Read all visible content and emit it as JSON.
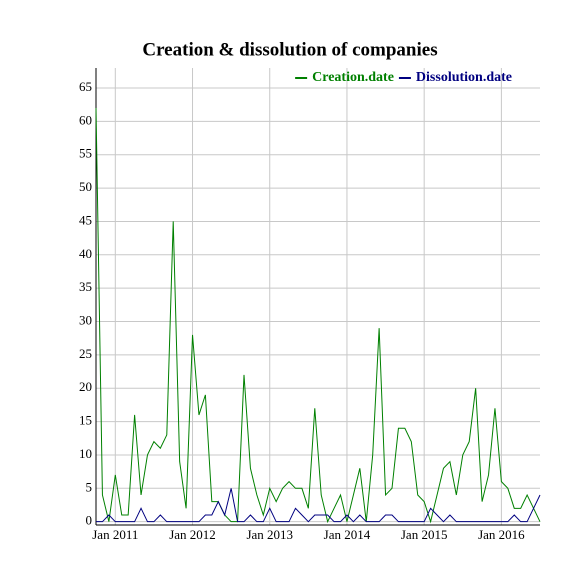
{
  "chart_data": {
    "type": "line",
    "title": "Creation & dissolution of companies",
    "x": [
      "2010-10",
      "2010-11",
      "2010-12",
      "2011-01",
      "2011-02",
      "2011-03",
      "2011-04",
      "2011-05",
      "2011-06",
      "2011-07",
      "2011-08",
      "2011-09",
      "2011-10",
      "2011-11",
      "2011-12",
      "2012-01",
      "2012-02",
      "2012-03",
      "2012-04",
      "2012-05",
      "2012-06",
      "2012-07",
      "2012-08",
      "2012-09",
      "2012-10",
      "2012-11",
      "2012-12",
      "2013-01",
      "2013-02",
      "2013-03",
      "2013-04",
      "2013-05",
      "2013-06",
      "2013-07",
      "2013-08",
      "2013-09",
      "2013-10",
      "2013-11",
      "2013-12",
      "2014-01",
      "2014-02",
      "2014-03",
      "2014-04",
      "2014-05",
      "2014-06",
      "2014-07",
      "2014-08",
      "2014-09",
      "2014-10",
      "2014-11",
      "2014-12",
      "2015-01",
      "2015-02",
      "2015-03",
      "2015-04",
      "2015-05",
      "2015-06",
      "2015-07",
      "2015-08",
      "2015-09",
      "2015-10",
      "2015-11",
      "2015-12",
      "2016-01",
      "2016-02",
      "2016-03",
      "2016-04",
      "2016-05",
      "2016-06",
      "2016-07"
    ],
    "series": [
      {
        "name": "Creation.date",
        "color": "#008000",
        "values": [
          62,
          4,
          0,
          7,
          1,
          1,
          16,
          4,
          10,
          12,
          11,
          13,
          45,
          9,
          2,
          28,
          16,
          19,
          3,
          3,
          1,
          0,
          0,
          22,
          8,
          4,
          1,
          5,
          3,
          5,
          6,
          5,
          5,
          2,
          17,
          4,
          0,
          2,
          4,
          0,
          4,
          8,
          0,
          10,
          29,
          4,
          5,
          14,
          14,
          12,
          4,
          3,
          0,
          4,
          8,
          9,
          4,
          10,
          12,
          20,
          3,
          7,
          17,
          6,
          5,
          2,
          2,
          4,
          2,
          0
        ]
      },
      {
        "name": "Dissolution.date",
        "color": "#000080",
        "values": [
          0,
          0,
          1,
          0,
          0,
          0,
          0,
          2,
          0,
          0,
          1,
          0,
          0,
          0,
          0,
          0,
          0,
          1,
          1,
          3,
          1,
          5,
          0,
          0,
          1,
          0,
          0,
          2,
          0,
          0,
          0,
          2,
          1,
          0,
          1,
          1,
          1,
          0,
          0,
          1,
          0,
          1,
          0,
          0,
          0,
          1,
          1,
          0,
          0,
          0,
          0,
          0,
          2,
          1,
          0,
          1,
          0,
          0,
          0,
          0,
          0,
          0,
          0,
          0,
          0,
          1,
          0,
          0,
          2,
          4
        ]
      }
    ],
    "ylim": [
      -0.5,
      68
    ],
    "yticks": [
      0,
      5,
      10,
      15,
      20,
      25,
      30,
      35,
      40,
      45,
      50,
      55,
      60,
      65
    ],
    "xticks": [
      {
        "value": "2011-01",
        "label": "Jan 2011"
      },
      {
        "value": "2012-01",
        "label": "Jan 2012"
      },
      {
        "value": "2013-01",
        "label": "Jan 2013"
      },
      {
        "value": "2014-01",
        "label": "Jan 2014"
      },
      {
        "value": "2015-01",
        "label": "Jan 2015"
      },
      {
        "value": "2016-01",
        "label": "Jan 2016"
      }
    ],
    "grid": true,
    "legend": "top-right"
  }
}
